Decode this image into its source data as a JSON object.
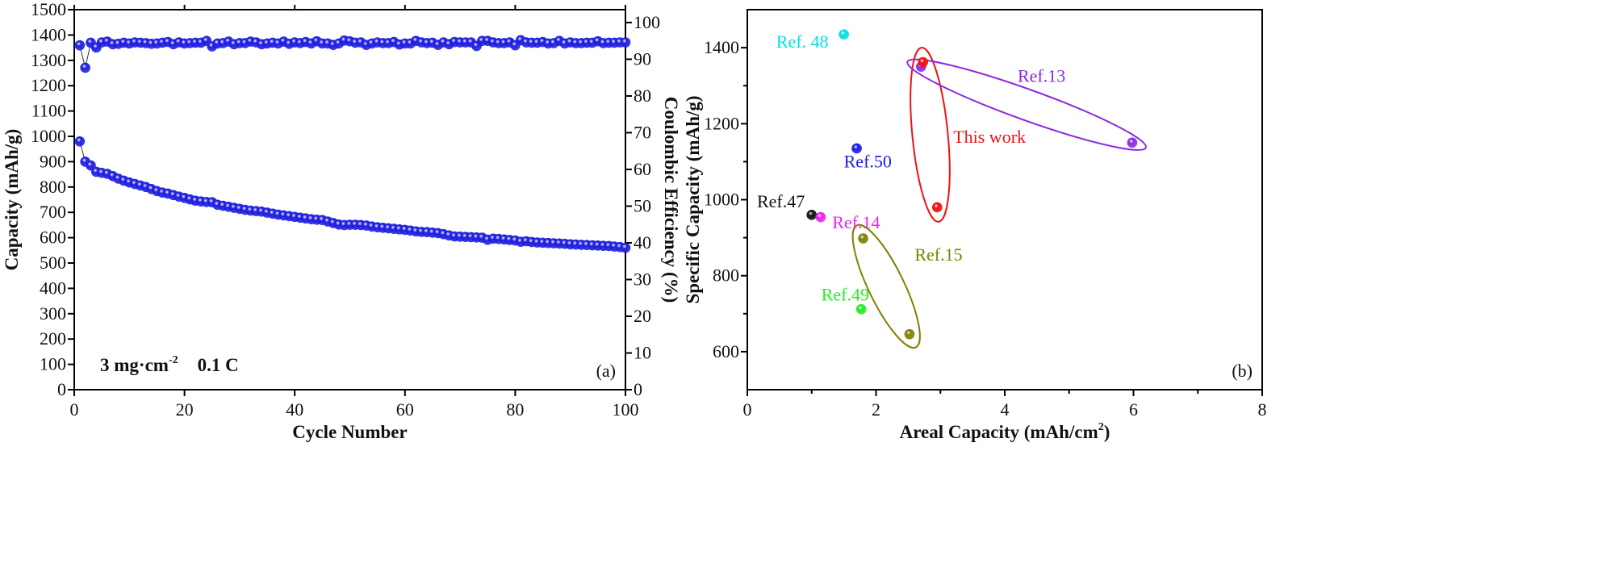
{
  "chart_data": [
    {
      "type": "scatter",
      "panel_label": "(a)",
      "xlabel": "Cycle Number",
      "ylabel": "Capacity (mAh/g)",
      "y2label": "Coulombic Efficiency (%)",
      "xlim": [
        0,
        100
      ],
      "ylim": [
        0,
        1500
      ],
      "y2lim": [
        0,
        103.5
      ],
      "xticks": [
        "0",
        "20",
        "40",
        "60",
        "80",
        "100"
      ],
      "yticks": [
        "0",
        "100",
        "200",
        "300",
        "400",
        "500",
        "600",
        "700",
        "800",
        "900",
        "1000",
        "1100",
        "1200",
        "1300",
        "1400",
        "1500"
      ],
      "y2ticks": [
        "0",
        "10",
        "20",
        "30",
        "40",
        "50",
        "60",
        "70",
        "80",
        "90",
        "100"
      ],
      "annotation": {
        "loading": "3 mg·cm",
        "exp": "-2",
        "rate": "0.1 C"
      },
      "color": "#2020e0",
      "series": [
        {
          "name": "Capacity",
          "axis": "left",
          "values": [
            980,
            900,
            885,
            860,
            856,
            852,
            843,
            833,
            825,
            818,
            812,
            806,
            800,
            792,
            784,
            778,
            774,
            768,
            762,
            757,
            751,
            746,
            743,
            741,
            740,
            730,
            726,
            722,
            718,
            714,
            710,
            707,
            705,
            703,
            699,
            695,
            691,
            688,
            685,
            682,
            679,
            676,
            673,
            671,
            670,
            664,
            658,
            652,
            650,
            651,
            651,
            650,
            648,
            644,
            641,
            639,
            637,
            635,
            633,
            631,
            628,
            625,
            623,
            622,
            620,
            618,
            614,
            609,
            605,
            604,
            603,
            602,
            601,
            600,
            592,
            596,
            595,
            593,
            591,
            589,
            584,
            586,
            583,
            581,
            580,
            579,
            578,
            577,
            576,
            574,
            573,
            572,
            571,
            570,
            569,
            568,
            567,
            565,
            563,
            560
          ]
        },
        {
          "name": "Coulombic Efficiency",
          "axis": "right",
          "values": [
            93.8,
            87.7,
            94.5,
            93.2,
            94.6,
            94.8,
            94.1,
            94.2,
            94.5,
            94.3,
            94.6,
            94.5,
            94.4,
            94.2,
            94.3,
            94.5,
            94.7,
            94.1,
            94.6,
            94.3,
            94.4,
            94.5,
            94.5,
            95.0,
            93.5,
            94.3,
            94.4,
            94.8,
            94.1,
            94.4,
            94.4,
            94.8,
            94.6,
            94.1,
            94.3,
            94.5,
            94.3,
            94.8,
            94.2,
            94.6,
            94.4,
            94.7,
            94.3,
            94.9,
            94.3,
            94.3,
            93.9,
            94.3,
            95.1,
            94.9,
            94.5,
            94.6,
            93.9,
            94.3,
            94.6,
            94.4,
            94.4,
            94.7,
            94.0,
            94.3,
            94.3,
            95.0,
            94.6,
            94.4,
            94.5,
            93.9,
            94.6,
            94.1,
            94.7,
            94.6,
            94.6,
            94.6,
            93.6,
            95.0,
            95.0,
            94.6,
            94.4,
            94.4,
            94.6,
            93.8,
            95.2,
            94.6,
            94.5,
            94.5,
            94.7,
            94.3,
            94.4,
            95.0,
            94.3,
            94.6,
            94.4,
            94.4,
            94.5,
            94.5,
            94.9,
            94.4,
            94.5,
            94.5,
            94.6,
            94.6
          ]
        }
      ]
    },
    {
      "type": "scatter",
      "panel_label": "(b)",
      "xlabel": "Areal Capacity (mAh/cm",
      "xlabel_sup": "2",
      "xlabel_end": ")",
      "ylabel": "Specific Capacity (mAh/g)",
      "xlim": [
        0,
        8
      ],
      "ylim": [
        500,
        1500
      ],
      "xticks": [
        "0",
        "2",
        "4",
        "6",
        "8"
      ],
      "yticks": [
        "600",
        "800",
        "1000",
        "1200",
        "1400"
      ],
      "series": [
        {
          "name": "Ref. 48",
          "color": "#00e0e0",
          "points": [
            [
              1.5,
              1435
            ]
          ]
        },
        {
          "name": "Ref.13",
          "color": "#8a2be2",
          "points": [
            [
              2.7,
              1350
            ],
            [
              5.98,
              1150
            ]
          ]
        },
        {
          "name": "This work",
          "color": "#ee1111",
          "points": [
            [
              2.73,
              1362
            ],
            [
              2.95,
              980
            ]
          ]
        },
        {
          "name": "Ref.50",
          "color": "#1a1aee",
          "points": [
            [
              1.7,
              1135
            ]
          ]
        },
        {
          "name": "Ref.47",
          "color": "#111111",
          "points": [
            [
              1.0,
              960
            ]
          ]
        },
        {
          "name": "Ref.14",
          "color": "#ee22ee",
          "points": [
            [
              1.14,
              954
            ]
          ]
        },
        {
          "name": "Ref.15",
          "color": "#808000",
          "points": [
            [
              1.8,
              898
            ],
            [
              2.52,
              646
            ]
          ]
        },
        {
          "name": "Ref.49",
          "color": "#22ee22",
          "points": [
            [
              1.77,
              712
            ]
          ]
        }
      ]
    }
  ]
}
